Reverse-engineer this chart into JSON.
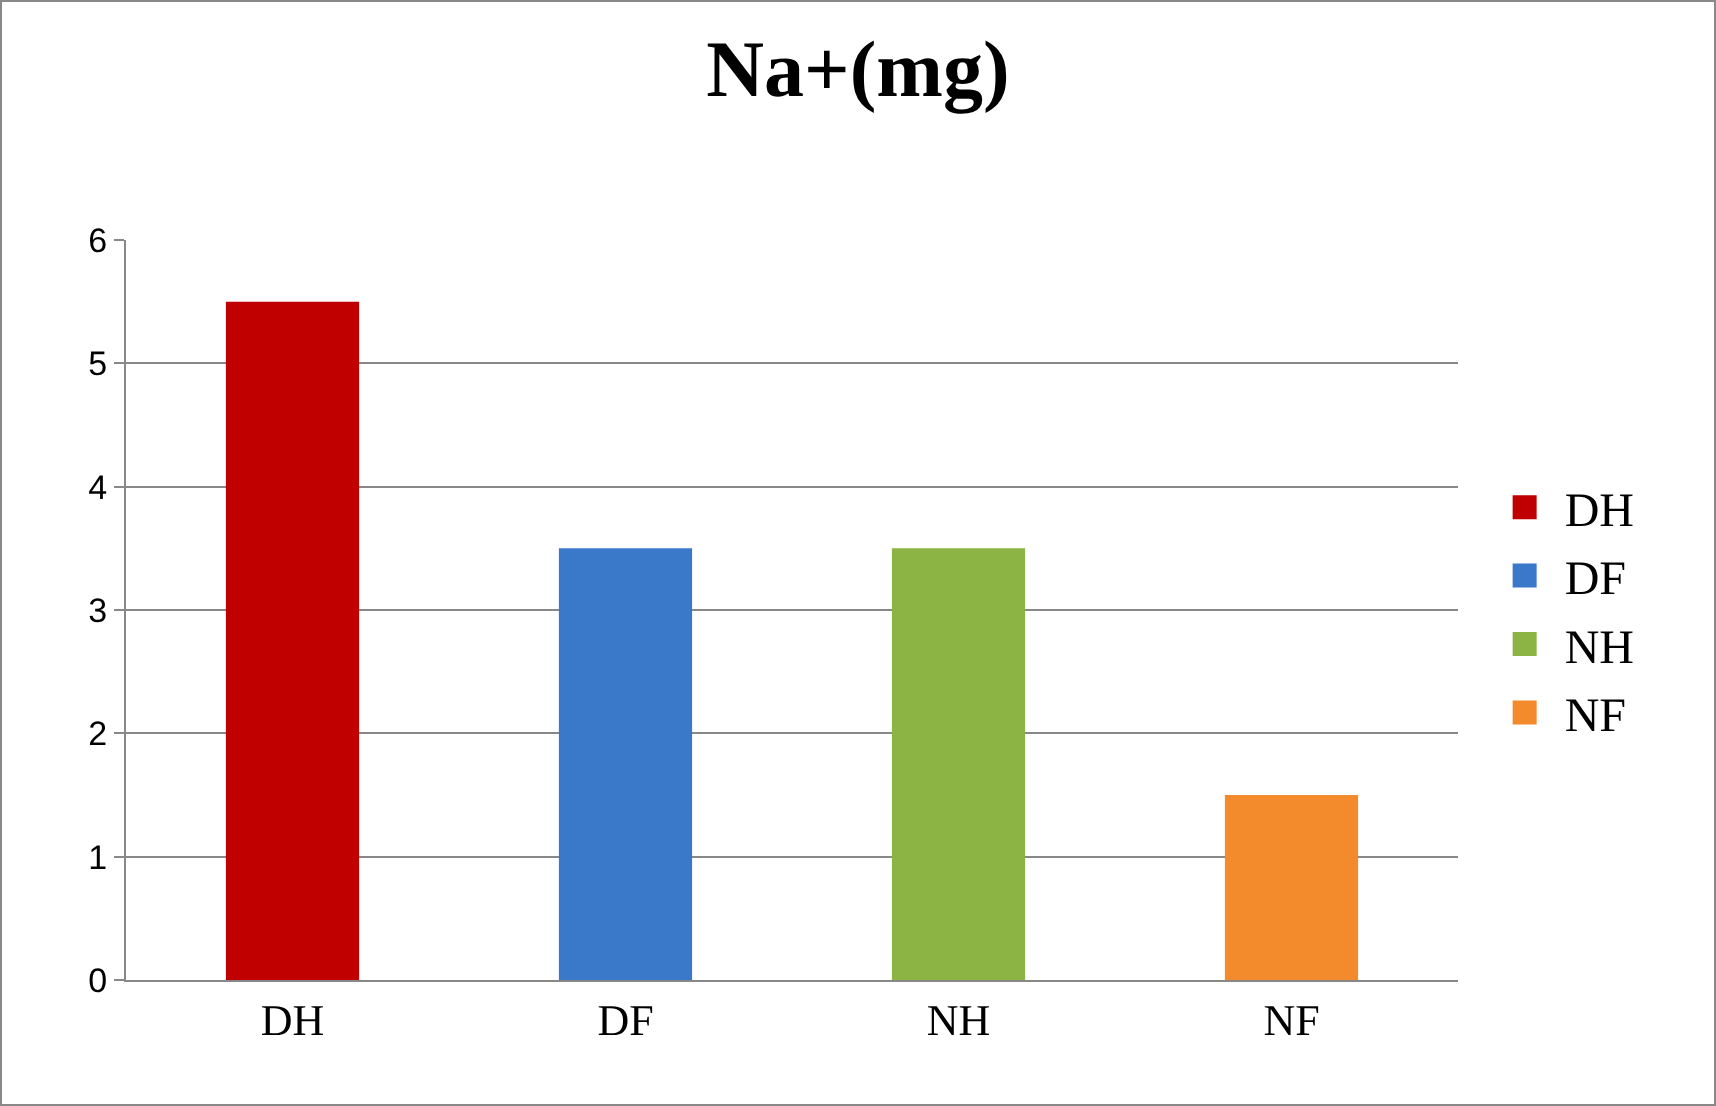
{
  "chart_data": {
    "type": "bar",
    "title": "Na+(mg)",
    "categories": [
      "DH",
      "DF",
      "NH",
      "NF"
    ],
    "series": [
      {
        "name": "DH",
        "color": "#c00000",
        "values": [
          5.5,
          null,
          null,
          null
        ]
      },
      {
        "name": "DF",
        "color": "#3a78c9",
        "values": [
          null,
          3.5,
          null,
          null
        ]
      },
      {
        "name": "NH",
        "color": "#8cb445",
        "values": [
          null,
          null,
          3.5,
          null
        ]
      },
      {
        "name": "NF",
        "color": "#f38a2c",
        "values": [
          null,
          null,
          null,
          1.5
        ]
      }
    ],
    "ylim": [
      0,
      6
    ],
    "yticks": [
      0,
      1,
      2,
      3,
      4,
      5,
      6
    ],
    "grid": "y",
    "legend": "right"
  }
}
